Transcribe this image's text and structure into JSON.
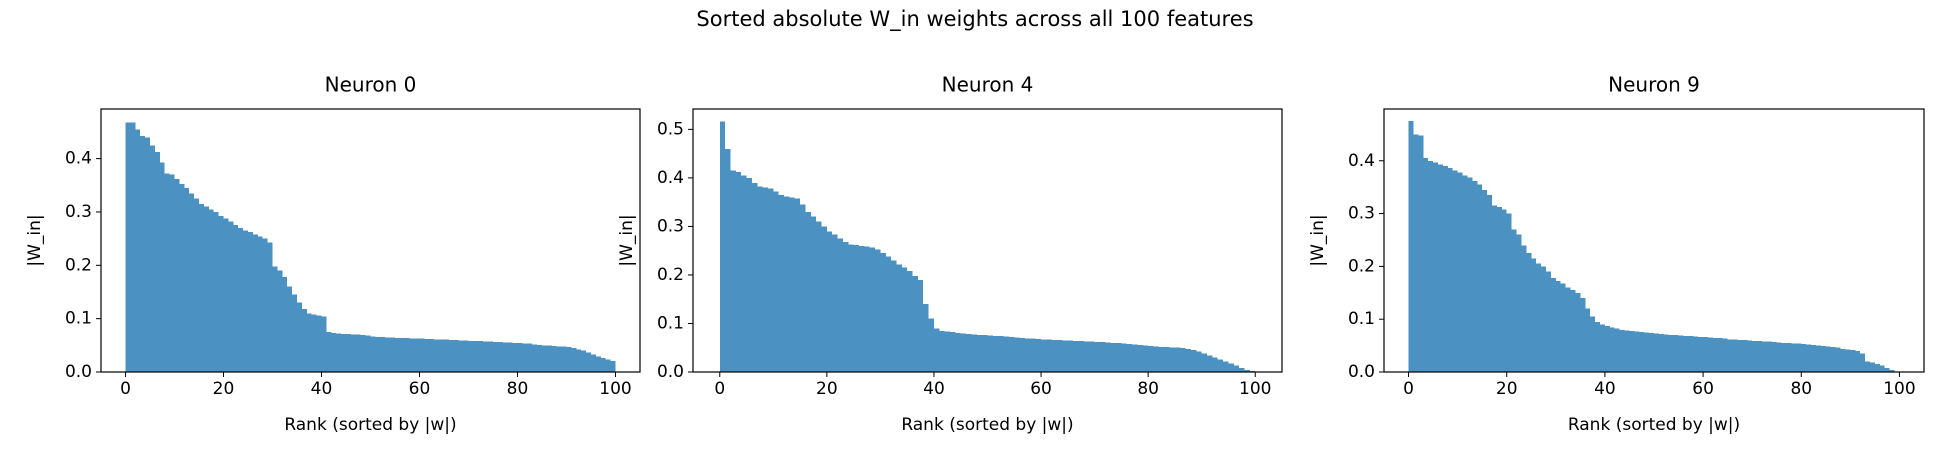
{
  "title": "Sorted absolute W_in weights across all 100 features",
  "chart_data": [
    {
      "type": "bar",
      "title": "Neuron 0",
      "xlabel": "Rank (sorted by |w|)",
      "ylabel": "|W_in|",
      "color": "#4b91c2",
      "x": [
        0,
        1,
        2,
        3,
        4,
        5,
        6,
        7,
        8,
        9,
        10,
        11,
        12,
        13,
        14,
        15,
        16,
        17,
        18,
        19,
        20,
        21,
        22,
        23,
        24,
        25,
        26,
        27,
        28,
        29,
        30,
        31,
        32,
        33,
        34,
        35,
        36,
        37,
        38,
        39,
        40,
        41,
        42,
        43,
        44,
        45,
        46,
        47,
        48,
        49,
        50,
        51,
        52,
        53,
        54,
        55,
        56,
        57,
        58,
        59,
        60,
        61,
        62,
        63,
        64,
        65,
        66,
        67,
        68,
        69,
        70,
        71,
        72,
        73,
        74,
        75,
        76,
        77,
        78,
        79,
        80,
        81,
        82,
        83,
        84,
        85,
        86,
        87,
        88,
        89,
        90,
        91,
        92,
        93,
        94,
        95,
        96,
        97,
        98,
        99
      ],
      "values": [
        0.468,
        0.468,
        0.455,
        0.442,
        0.44,
        0.425,
        0.412,
        0.393,
        0.372,
        0.37,
        0.362,
        0.352,
        0.345,
        0.335,
        0.325,
        0.315,
        0.31,
        0.305,
        0.3,
        0.292,
        0.288,
        0.282,
        0.276,
        0.27,
        0.265,
        0.262,
        0.258,
        0.254,
        0.25,
        0.243,
        0.198,
        0.19,
        0.178,
        0.16,
        0.145,
        0.13,
        0.118,
        0.11,
        0.108,
        0.106,
        0.104,
        0.075,
        0.073,
        0.072,
        0.071,
        0.071,
        0.07,
        0.07,
        0.069,
        0.068,
        0.067,
        0.066,
        0.066,
        0.065,
        0.065,
        0.064,
        0.064,
        0.064,
        0.063,
        0.063,
        0.063,
        0.062,
        0.062,
        0.061,
        0.061,
        0.061,
        0.06,
        0.06,
        0.059,
        0.059,
        0.058,
        0.058,
        0.058,
        0.057,
        0.057,
        0.056,
        0.056,
        0.055,
        0.055,
        0.054,
        0.054,
        0.053,
        0.053,
        0.052,
        0.051,
        0.05,
        0.05,
        0.049,
        0.048,
        0.048,
        0.047,
        0.045,
        0.042,
        0.04,
        0.037,
        0.033,
        0.029,
        0.026,
        0.023,
        0.021
      ],
      "xlim": [
        -5,
        105
      ],
      "xticks": [
        0,
        20,
        40,
        60,
        80,
        100
      ],
      "ylim": [
        0,
        0.493
      ],
      "yticks": [
        {
          "value": 0,
          "label": "0.0"
        },
        0.1,
        0.2,
        0.3,
        0.4
      ]
    },
    {
      "type": "bar",
      "title": "Neuron 4",
      "xlabel": "Rank (sorted by |w|)",
      "ylabel": "|W_in|",
      "color": "#4b91c2",
      "x": [
        0,
        1,
        2,
        3,
        4,
        5,
        6,
        7,
        8,
        9,
        10,
        11,
        12,
        13,
        14,
        15,
        16,
        17,
        18,
        19,
        20,
        21,
        22,
        23,
        24,
        25,
        26,
        27,
        28,
        29,
        30,
        31,
        32,
        33,
        34,
        35,
        36,
        37,
        38,
        39,
        40,
        41,
        42,
        43,
        44,
        45,
        46,
        47,
        48,
        49,
        50,
        51,
        52,
        53,
        54,
        55,
        56,
        57,
        58,
        59,
        60,
        61,
        62,
        63,
        64,
        65,
        66,
        67,
        68,
        69,
        70,
        71,
        72,
        73,
        74,
        75,
        76,
        77,
        78,
        79,
        80,
        81,
        82,
        83,
        84,
        85,
        86,
        87,
        88,
        89,
        90,
        91,
        92,
        93,
        94,
        95,
        96,
        97,
        98,
        99
      ],
      "values": [
        0.516,
        0.46,
        0.415,
        0.412,
        0.405,
        0.4,
        0.39,
        0.382,
        0.38,
        0.378,
        0.372,
        0.365,
        0.362,
        0.36,
        0.358,
        0.345,
        0.33,
        0.32,
        0.31,
        0.3,
        0.29,
        0.283,
        0.275,
        0.268,
        0.263,
        0.262,
        0.26,
        0.259,
        0.257,
        0.252,
        0.245,
        0.238,
        0.23,
        0.222,
        0.215,
        0.208,
        0.198,
        0.19,
        0.14,
        0.11,
        0.09,
        0.085,
        0.083,
        0.082,
        0.08,
        0.079,
        0.078,
        0.077,
        0.076,
        0.076,
        0.075,
        0.074,
        0.074,
        0.073,
        0.072,
        0.071,
        0.07,
        0.069,
        0.069,
        0.068,
        0.067,
        0.067,
        0.066,
        0.066,
        0.065,
        0.065,
        0.064,
        0.064,
        0.063,
        0.063,
        0.062,
        0.062,
        0.061,
        0.06,
        0.06,
        0.059,
        0.058,
        0.057,
        0.056,
        0.055,
        0.054,
        0.053,
        0.052,
        0.052,
        0.051,
        0.05,
        0.049,
        0.047,
        0.045,
        0.042,
        0.038,
        0.034,
        0.03,
        0.026,
        0.022,
        0.018,
        0.013,
        0.008,
        0.004,
        0.002
      ],
      "xlim": [
        -5,
        105
      ],
      "xticks": [
        0,
        20,
        40,
        60,
        80,
        100
      ],
      "ylim": [
        0,
        0.542
      ],
      "yticks": [
        {
          "value": 0,
          "label": "0.0"
        },
        0.1,
        0.2,
        0.3,
        0.4,
        0.5
      ]
    },
    {
      "type": "bar",
      "title": "Neuron 9",
      "xlabel": "Rank (sorted by |w|)",
      "ylabel": "|W_in|",
      "color": "#4b91c2",
      "x": [
        0,
        1,
        2,
        3,
        4,
        5,
        6,
        7,
        8,
        9,
        10,
        11,
        12,
        13,
        14,
        15,
        16,
        17,
        18,
        19,
        20,
        21,
        22,
        23,
        24,
        25,
        26,
        27,
        28,
        29,
        30,
        31,
        32,
        33,
        34,
        35,
        36,
        37,
        38,
        39,
        40,
        41,
        42,
        43,
        44,
        45,
        46,
        47,
        48,
        49,
        50,
        51,
        52,
        53,
        54,
        55,
        56,
        57,
        58,
        59,
        60,
        61,
        62,
        63,
        64,
        65,
        66,
        67,
        68,
        69,
        70,
        71,
        72,
        73,
        74,
        75,
        76,
        77,
        78,
        79,
        80,
        81,
        82,
        83,
        84,
        85,
        86,
        87,
        88,
        89,
        90,
        91,
        92,
        93,
        94,
        95,
        96,
        97,
        98,
        99
      ],
      "values": [
        0.475,
        0.45,
        0.448,
        0.405,
        0.4,
        0.397,
        0.393,
        0.39,
        0.386,
        0.382,
        0.378,
        0.372,
        0.368,
        0.362,
        0.355,
        0.345,
        0.335,
        0.315,
        0.312,
        0.308,
        0.3,
        0.27,
        0.26,
        0.24,
        0.225,
        0.215,
        0.205,
        0.2,
        0.19,
        0.178,
        0.172,
        0.168,
        0.16,
        0.155,
        0.15,
        0.14,
        0.12,
        0.105,
        0.095,
        0.09,
        0.087,
        0.084,
        0.082,
        0.08,
        0.079,
        0.078,
        0.077,
        0.076,
        0.075,
        0.074,
        0.073,
        0.072,
        0.071,
        0.07,
        0.07,
        0.069,
        0.068,
        0.068,
        0.067,
        0.066,
        0.066,
        0.065,
        0.064,
        0.064,
        0.063,
        0.062,
        0.062,
        0.061,
        0.061,
        0.06,
        0.059,
        0.059,
        0.058,
        0.058,
        0.057,
        0.056,
        0.055,
        0.055,
        0.054,
        0.054,
        0.053,
        0.052,
        0.051,
        0.05,
        0.049,
        0.048,
        0.047,
        0.046,
        0.044,
        0.043,
        0.042,
        0.04,
        0.035,
        0.02,
        0.018,
        0.015,
        0.012,
        0.008,
        0.004,
        0.001
      ],
      "xlim": [
        -5,
        105
      ],
      "xticks": [
        0,
        20,
        40,
        60,
        80,
        100
      ],
      "ylim": [
        0,
        0.498
      ],
      "yticks": [
        {
          "value": 0,
          "label": "0.0"
        },
        0.1,
        0.2,
        0.3,
        0.4
      ]
    }
  ]
}
